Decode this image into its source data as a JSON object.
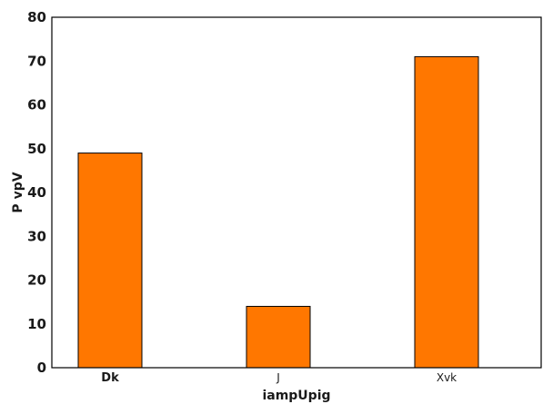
{
  "chart_data": {
    "type": "bar",
    "title": "",
    "xlabel": "iampUpig",
    "ylabel": "P vpV",
    "categories": [
      "Dk",
      "J",
      "Xvk"
    ],
    "values": [
      49,
      14,
      71
    ],
    "ylim": [
      0,
      80
    ],
    "yticks": [
      0,
      10,
      20,
      30,
      40,
      50,
      60,
      70,
      80
    ],
    "grid": false,
    "bar_color": "#ff7700",
    "bar_edge_color": "#000000"
  }
}
